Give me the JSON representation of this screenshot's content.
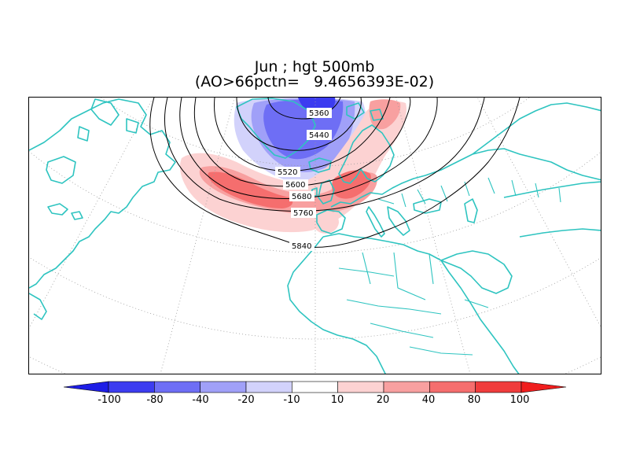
{
  "title": {
    "line1": "Jun ; hgt 500mb",
    "line2": "(AO>66pctn=   9.4656393E-02)"
  },
  "map": {
    "projection": "north-polar-stereographic",
    "region": "North Atlantic / Europe / North Africa",
    "coastline_color": "#2ec4c0",
    "grid_style": "dotted-gray",
    "contour_labels": [
      "5360",
      "5440",
      "5520",
      "5600",
      "5680",
      "5760",
      "5840"
    ]
  },
  "colorbar": {
    "colors": [
      "#1e1ee6",
      "#3c3cf0",
      "#6e6ef5",
      "#a0a0f8",
      "#d2d2fb",
      "#ffffff",
      "#fcd2d2",
      "#f8a0a0",
      "#f56e6e",
      "#f03c3c",
      "#f01e1e"
    ],
    "labels": [
      "-100",
      "-80",
      "-40",
      "-20",
      "-10",
      "10",
      "20",
      "40",
      "80",
      "100"
    ],
    "left_arrow_color": "#1e1ee6",
    "right_arrow_color": "#f01e1e"
  }
}
